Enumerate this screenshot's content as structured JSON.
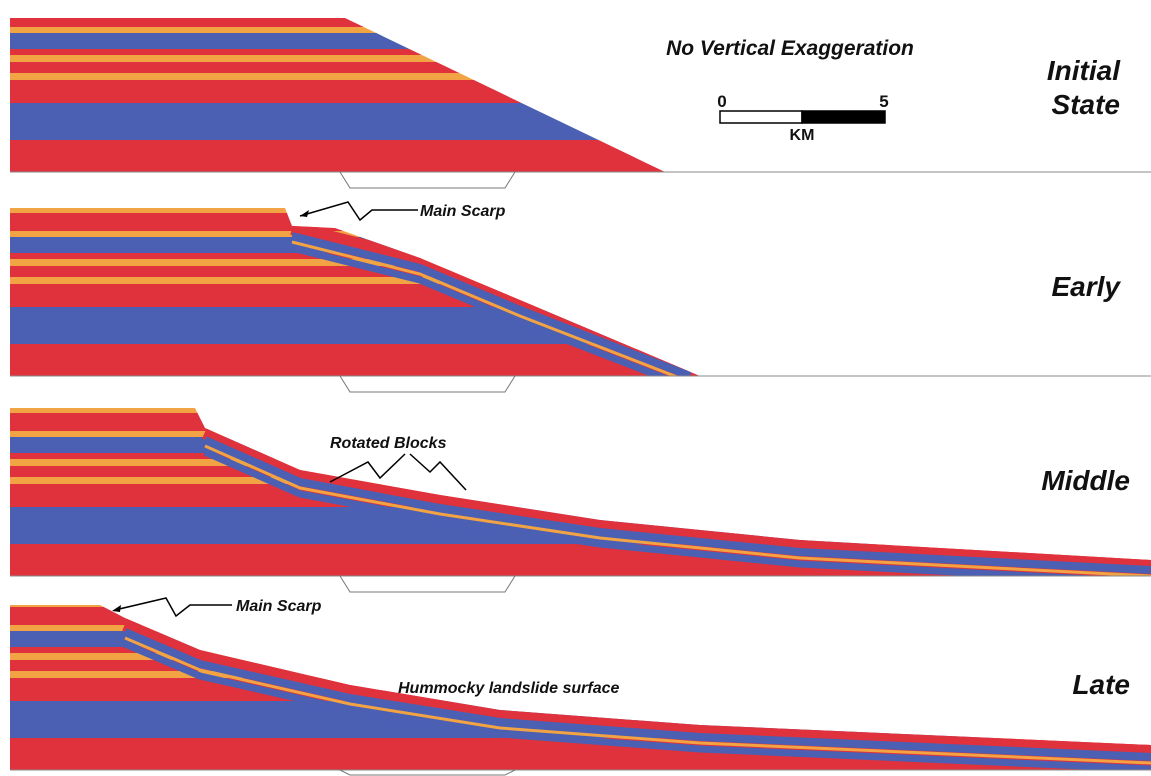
{
  "header": {
    "title": "No Vertical Exaggeration"
  },
  "scale_bar": {
    "start": "0",
    "end": "5",
    "unit": "KM"
  },
  "panels": [
    {
      "label": [
        "Initial",
        "State"
      ]
    },
    {
      "label": "Early",
      "annotation": "Main Scarp"
    },
    {
      "label": "Middle",
      "annotation": "Rotated Blocks"
    },
    {
      "label": "Late",
      "annotation": "Main Scarp",
      "note": "Hummocky landslide surface"
    }
  ]
}
